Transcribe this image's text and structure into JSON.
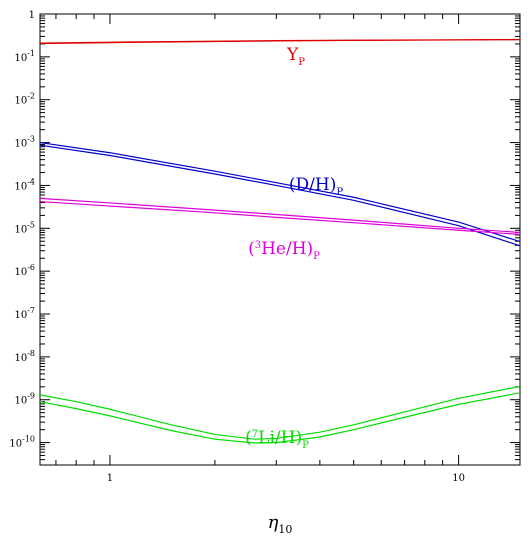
{
  "chart_data": {
    "type": "line",
    "title": "",
    "xlabel": "η",
    "xlabel_sub": "10",
    "ylabel": "",
    "xscale": "log",
    "yscale": "log",
    "xlim": [
      0.63,
      15
    ],
    "ylim": [
      3e-11,
      1
    ],
    "grid": false,
    "x_ticks": [
      {
        "value": 1,
        "label": "1"
      },
      {
        "value": 10,
        "label": "10"
      }
    ],
    "y_ticks": [
      {
        "value": 1,
        "base": "1",
        "exp": ""
      },
      {
        "value": 0.1,
        "base": "10",
        "exp": "-1"
      },
      {
        "value": 0.01,
        "base": "10",
        "exp": "-2"
      },
      {
        "value": 0.001,
        "base": "10",
        "exp": "-3"
      },
      {
        "value": 0.0001,
        "base": "10",
        "exp": "-4"
      },
      {
        "value": 1e-05,
        "base": "10",
        "exp": "-5"
      },
      {
        "value": 1e-06,
        "base": "10",
        "exp": "-6"
      },
      {
        "value": 1e-07,
        "base": "10",
        "exp": "-7"
      },
      {
        "value": 1e-08,
        "base": "10",
        "exp": "-8"
      },
      {
        "value": 1e-09,
        "base": "10",
        "exp": "-9"
      },
      {
        "value": 1e-10,
        "base": "10",
        "exp": "-10"
      }
    ],
    "series": [
      {
        "color": "#dd0000",
        "label": {
          "pre": "Y",
          "sup": "",
          "mid": "",
          "sub": "P"
        },
        "x": [
          0.63,
          1,
          2,
          3,
          5,
          10,
          15
        ],
        "bands": [
          [
            0.205,
            0.215,
            0.228,
            0.235,
            0.242,
            0.248,
            0.252
          ],
          [
            0.21,
            0.22,
            0.232,
            0.239,
            0.245,
            0.25,
            0.254
          ]
        ]
      },
      {
        "color": "#0000cc",
        "label": {
          "pre": "(D/H)",
          "sup": "",
          "mid": "",
          "sub": "P"
        },
        "x": [
          0.63,
          1,
          2,
          3,
          5,
          10,
          15
        ],
        "bands": [
          [
            0.00087,
            0.0005,
            0.000185,
            0.0001,
            4.5e-05,
            1.15e-05,
            3.9e-06
          ],
          [
            0.001,
            0.00058,
            0.000215,
            0.000116,
            5.3e-05,
            1.4e-05,
            4.9e-06
          ]
        ]
      },
      {
        "color": "#dd00dd",
        "label": {
          "pre": "(",
          "sup": "3",
          "mid": "He/H)",
          "sub": "P"
        },
        "x": [
          0.63,
          1,
          2,
          3,
          5,
          10,
          15
        ],
        "bands": [
          [
            4.2e-05,
            3.3e-05,
            2.3e-05,
            1.8e-05,
            1.35e-05,
            9e-06,
            7.2e-06
          ],
          [
            5e-05,
            3.9e-05,
            2.65e-05,
            2.1e-05,
            1.55e-05,
            1e-05,
            8e-06
          ]
        ]
      },
      {
        "color": "#00dd00",
        "label": {
          "pre": "(",
          "sup": "7",
          "mid": "Li/H)",
          "sub": "P"
        },
        "x": [
          0.63,
          0.8,
          1,
          1.5,
          2,
          2.6,
          3,
          4,
          5,
          7,
          10,
          15
        ],
        "bands": [
          [
            9e-10,
            6.2e-10,
            4.2e-10,
            1.9e-10,
            1.2e-10,
            9.8e-11,
            1e-10,
            1.35e-10,
            2e-10,
            3.9e-10,
            7.8e-10,
            1.45e-09
          ],
          [
            1.3e-09,
            9e-10,
            6e-10,
            2.6e-10,
            1.55e-10,
            1.2e-10,
            1.25e-10,
            1.75e-10,
            2.6e-10,
            5.2e-10,
            1.08e-09,
            2.05e-09
          ]
        ]
      }
    ]
  }
}
